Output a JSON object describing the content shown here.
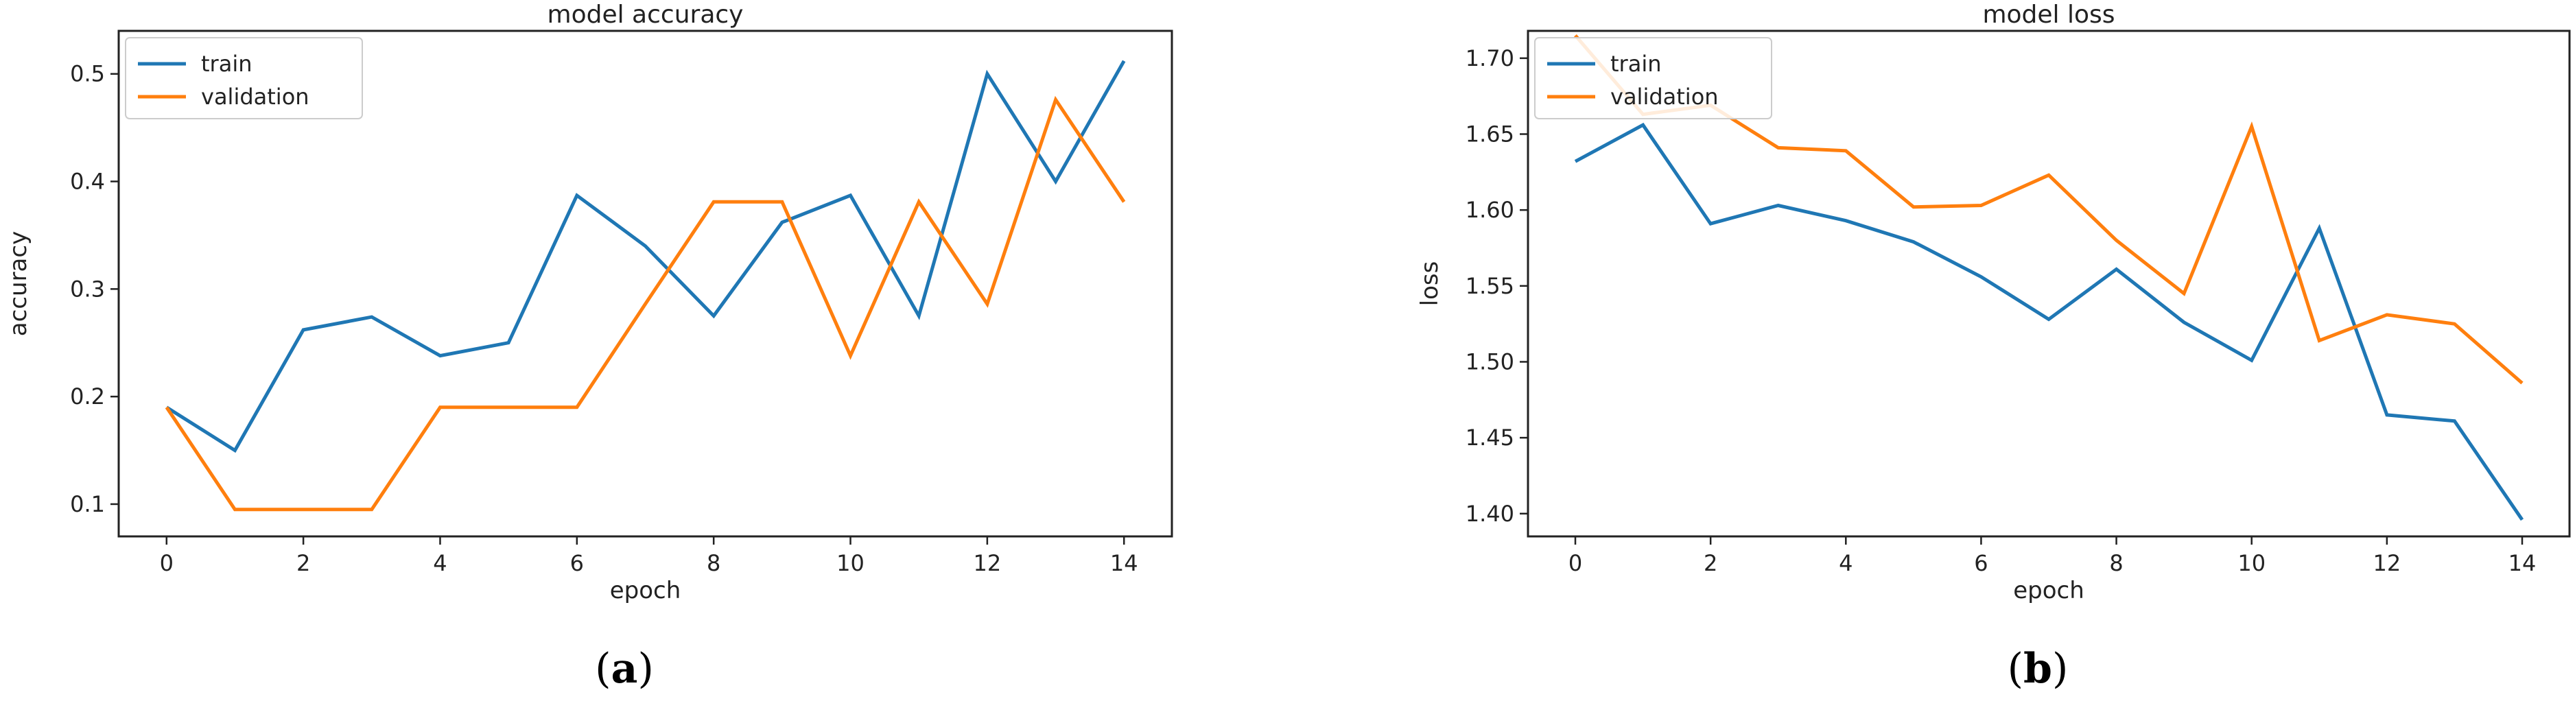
{
  "chart_data": [
    {
      "type": "line",
      "title": "model accuracy",
      "xlabel": "epoch",
      "ylabel": "accuracy",
      "xlim": [
        -0.7,
        14.7
      ],
      "ylim": [
        0.07,
        0.54
      ],
      "xticks": [
        0,
        2,
        4,
        6,
        8,
        10,
        12,
        14
      ],
      "yticks": [
        0.1,
        0.2,
        0.3,
        0.4,
        0.5
      ],
      "legend_position": "top-left",
      "x": [
        0,
        1,
        2,
        3,
        4,
        5,
        6,
        7,
        8,
        9,
        10,
        11,
        12,
        13,
        14
      ],
      "series": [
        {
          "name": "train",
          "color": "#1f77b4",
          "values": [
            0.19,
            0.15,
            0.262,
            0.274,
            0.238,
            0.25,
            0.387,
            0.34,
            0.275,
            0.362,
            0.387,
            0.275,
            0.5,
            0.4,
            0.512
          ]
        },
        {
          "name": "validation",
          "color": "#ff7f0e",
          "values": [
            0.19,
            0.095,
            0.095,
            0.095,
            0.19,
            0.19,
            0.19,
            0.286,
            0.381,
            0.381,
            0.238,
            0.381,
            0.286,
            0.476,
            0.381
          ]
        }
      ],
      "caption": {
        "open": "(",
        "letter": "a",
        "close": ")"
      }
    },
    {
      "type": "line",
      "title": "model loss",
      "xlabel": "epoch",
      "ylabel": "loss",
      "xlim": [
        -0.7,
        14.7
      ],
      "ylim": [
        1.385,
        1.718
      ],
      "xticks": [
        0,
        2,
        4,
        6,
        8,
        10,
        12,
        14
      ],
      "yticks": [
        1.4,
        1.45,
        1.5,
        1.55,
        1.6,
        1.65,
        1.7
      ],
      "ytick_labels": [
        "1.40",
        "1.45",
        "1.50",
        "1.55",
        "1.60",
        "1.65",
        "1.70"
      ],
      "legend_position": "top-left",
      "x": [
        0,
        1,
        2,
        3,
        4,
        5,
        6,
        7,
        8,
        9,
        10,
        11,
        12,
        13,
        14
      ],
      "series": [
        {
          "name": "train",
          "color": "#1f77b4",
          "values": [
            1.632,
            1.656,
            1.591,
            1.603,
            1.593,
            1.579,
            1.556,
            1.528,
            1.561,
            1.526,
            1.501,
            1.588,
            1.465,
            1.461,
            1.396
          ]
        },
        {
          "name": "validation",
          "color": "#ff7f0e",
          "values": [
            1.715,
            1.663,
            1.669,
            1.641,
            1.639,
            1.602,
            1.603,
            1.623,
            1.58,
            1.545,
            1.655,
            1.514,
            1.531,
            1.525,
            1.486
          ]
        }
      ],
      "caption": {
        "open": "(",
        "letter": "b",
        "close": ")"
      }
    }
  ]
}
